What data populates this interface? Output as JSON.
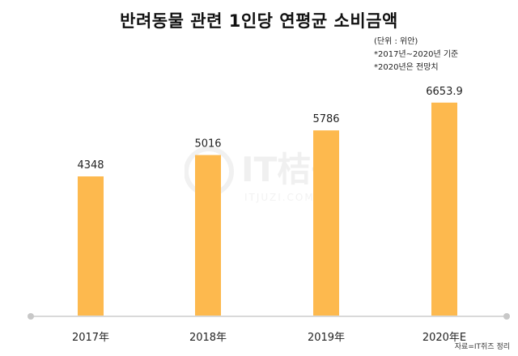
{
  "title": "반려동물 관련 1인당 연평균 소비금액",
  "notes": {
    "unit": "(단위 : 위안)",
    "basis": "*2017년~2020년  기준",
    "forecast": "*2020년은  전망치"
  },
  "source": "자료=IT쥐즈 정리",
  "watermark": {
    "main": "IT桔子",
    "sub": "ITJUZI.COM"
  },
  "colors": {
    "bar": "#FDB94E",
    "axis": "#D9D9D9",
    "dot": "#C8C8C8"
  },
  "chart_data": {
    "type": "bar",
    "title": "반려동물 관련 1인당 연평균 소비금액",
    "categories": [
      "2017年",
      "2018年",
      "2019年",
      "2020年E"
    ],
    "values": [
      4348,
      5016,
      5786,
      6653.9
    ],
    "value_labels": [
      "4348",
      "5016",
      "5786",
      "6653.9"
    ],
    "xlabel": "",
    "ylabel": "",
    "ylim": [
      0,
      6700
    ],
    "grid": false,
    "legend": "none"
  }
}
